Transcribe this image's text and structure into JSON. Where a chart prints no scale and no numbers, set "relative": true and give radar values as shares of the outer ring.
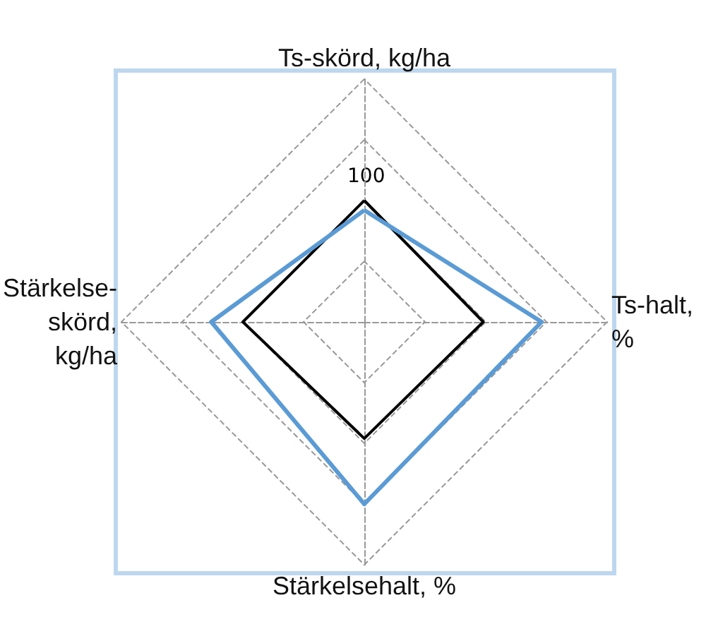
{
  "chart_data": {
    "type": "radar",
    "relative": true,
    "categories": [
      "Ts-skörd, kg/ha",
      "Ts-halt,\n%",
      "Stärkelsehalt, %",
      "Stärkelse-\nskörd,\nkg/ha"
    ],
    "series": [
      {
        "color": "#000000",
        "values": [
          0.5,
          0.49,
          0.48,
          0.5
        ]
      },
      {
        "color": "#5b9bd5",
        "values": [
          0.46,
          0.73,
          0.75,
          0.63
        ]
      }
    ],
    "annotations": [
      "100"
    ],
    "grid": true,
    "marker": "none",
    "line_style": "solid"
  }
}
